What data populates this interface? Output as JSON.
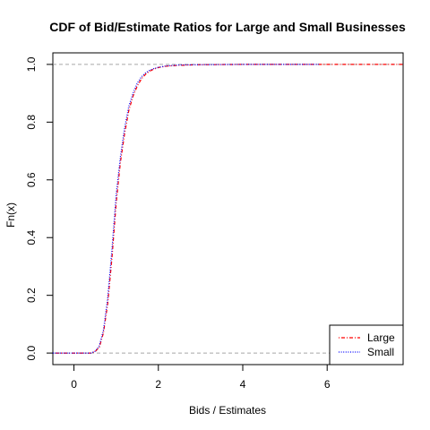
{
  "chart_data": {
    "type": "line",
    "title": "CDF of Bid/Estimate Ratios for Large and Small Businesses",
    "xlabel": "Bids / Estimates",
    "ylabel": "Fn(x)",
    "xlim": [
      -0.5,
      7.8
    ],
    "ylim": [
      -0.04,
      1.04
    ],
    "x_ticks": [
      0,
      2,
      4,
      6
    ],
    "x_tick_labels": [
      "0",
      "2",
      "4",
      "6"
    ],
    "y_ticks": [
      0.0,
      0.2,
      0.4,
      0.6,
      0.8,
      1.0
    ],
    "y_tick_labels": [
      "0.0",
      "0.2",
      "0.4",
      "0.6",
      "0.8",
      "1.0"
    ],
    "reference_lines_y": [
      0,
      1
    ],
    "legend_position": "bottom-right",
    "series": [
      {
        "name": "Large",
        "color": "#ff0000",
        "dash": "dotdash",
        "x": [
          -0.5,
          0.4,
          0.5,
          0.6,
          0.7,
          0.8,
          0.9,
          1.0,
          1.1,
          1.2,
          1.3,
          1.4,
          1.5,
          1.6,
          1.7,
          1.8,
          1.9,
          2.0,
          2.2,
          2.5,
          3.0,
          4.0,
          5.0,
          6.0,
          7.8
        ],
        "values": [
          0,
          0,
          0.005,
          0.02,
          0.07,
          0.17,
          0.33,
          0.52,
          0.66,
          0.76,
          0.84,
          0.89,
          0.925,
          0.95,
          0.966,
          0.977,
          0.984,
          0.989,
          0.994,
          0.997,
          0.999,
          1.0,
          1.0,
          1.0,
          1.0
        ]
      },
      {
        "name": "Small",
        "color": "#0000ff",
        "dash": "dotted",
        "x": [
          -0.5,
          0.4,
          0.5,
          0.6,
          0.7,
          0.8,
          0.9,
          1.0,
          1.1,
          1.2,
          1.3,
          1.4,
          1.5,
          1.6,
          1.7,
          1.8,
          1.9,
          2.0,
          2.2,
          2.5,
          3.0,
          4.0,
          5.0,
          5.8
        ],
        "values": [
          0,
          0,
          0.006,
          0.025,
          0.08,
          0.19,
          0.36,
          0.55,
          0.68,
          0.78,
          0.855,
          0.9,
          0.935,
          0.957,
          0.971,
          0.98,
          0.986,
          0.99,
          0.995,
          0.998,
          0.999,
          1.0,
          1.0,
          1.0
        ]
      }
    ]
  }
}
